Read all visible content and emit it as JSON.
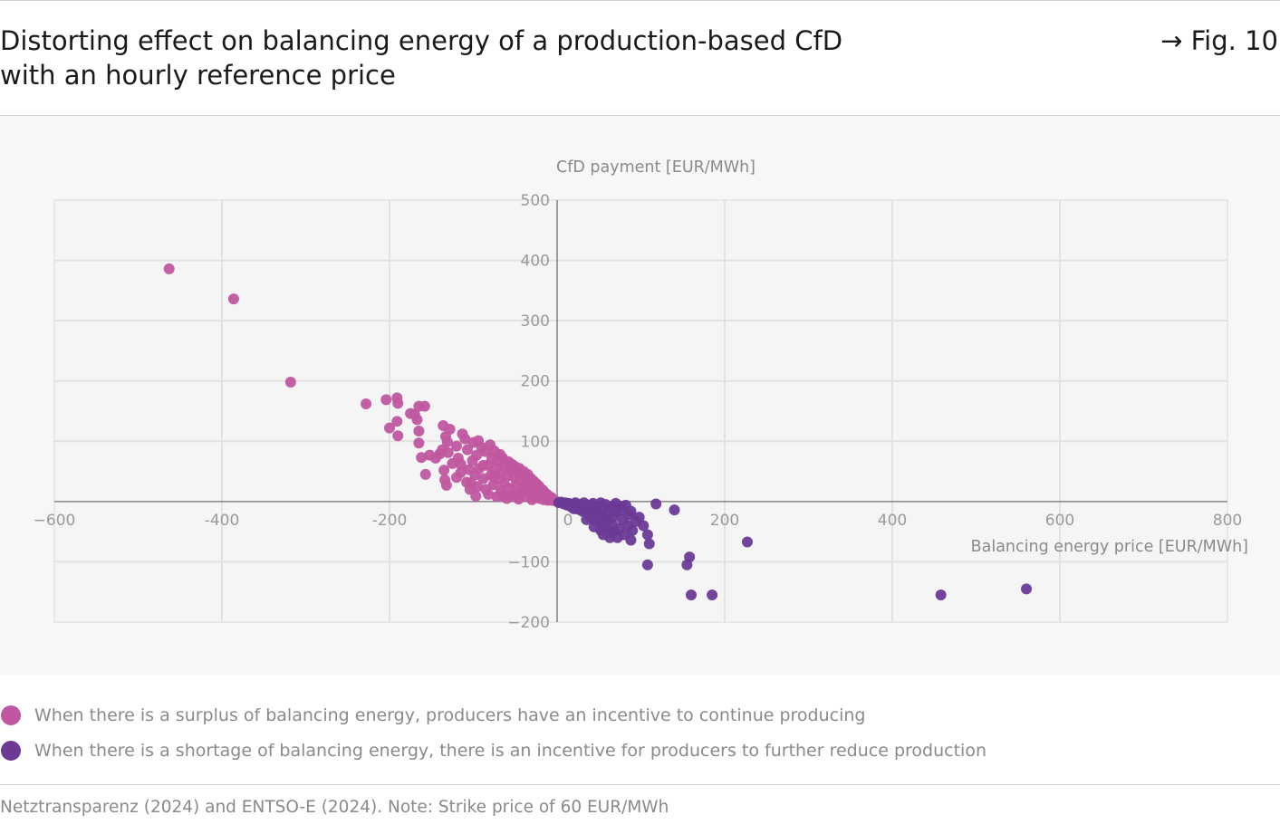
{
  "header": {
    "title_line1": "Distorting effect on balancing energy of a production-based CfD",
    "title_line2": "with an hourly reference price",
    "figure_ref": "→ Fig. 10"
  },
  "chart_data": {
    "type": "scatter",
    "title": "",
    "xlabel": "Balancing energy price [EUR/MWh]",
    "ylabel": "CfD payment [EUR/MWh]",
    "xlim": [
      -600,
      800
    ],
    "ylim": [
      -200,
      500
    ],
    "x_ticks": [
      -600,
      -400,
      -200,
      0,
      200,
      400,
      600,
      800
    ],
    "y_ticks": [
      -200,
      -100,
      100,
      200,
      300,
      400,
      500
    ],
    "x_tick_labels": [
      "−600",
      "-400",
      "-200",
      "0",
      "200",
      "400",
      "600",
      "800"
    ],
    "y_tick_labels": [
      "−200",
      "−100",
      "100",
      "200",
      "300",
      "400",
      "500"
    ],
    "grid": true,
    "series": [
      {
        "name": "When there is a surplus of balancing energy, producers have an incentive to continue producing",
        "color": "#c0569f",
        "points": [
          [
            -463,
            386
          ],
          [
            -386,
            336
          ],
          [
            -318,
            198
          ],
          [
            -228,
            162
          ],
          [
            -204,
            169
          ],
          [
            -191,
            172
          ],
          [
            -190,
            163
          ],
          [
            -175,
            146
          ],
          [
            -170,
            145
          ],
          [
            -167,
            136
          ],
          [
            -165,
            158
          ],
          [
            -158,
            158
          ],
          [
            -191,
            133
          ],
          [
            -200,
            122
          ],
          [
            -190,
            109
          ],
          [
            -165,
            117
          ],
          [
            -165,
            97
          ],
          [
            -152,
            77
          ],
          [
            -162,
            73
          ],
          [
            -157,
            45
          ],
          [
            -145,
            72
          ],
          [
            -140,
            79
          ],
          [
            -137,
            86
          ],
          [
            -136,
            126
          ],
          [
            -133,
            108
          ],
          [
            -131,
            99
          ],
          [
            -130,
            81
          ],
          [
            -125,
            63
          ],
          [
            -135,
            52
          ],
          [
            -134,
            36
          ],
          [
            -132,
            27
          ],
          [
            -128,
            120
          ],
          [
            -120,
            92
          ],
          [
            -118,
            72
          ],
          [
            -115,
            62
          ],
          [
            -113,
            112
          ],
          [
            -110,
            104
          ],
          [
            -107,
            86
          ],
          [
            -105,
            53
          ],
          [
            -104,
            20
          ],
          [
            -103,
            31
          ],
          [
            -101,
            68
          ],
          [
            -100,
            98
          ],
          [
            -98,
            44
          ],
          [
            -97,
            9
          ],
          [
            -96,
            77
          ],
          [
            -94,
            101
          ],
          [
            -93,
            55
          ],
          [
            -90,
            90
          ],
          [
            -88,
            38
          ],
          [
            -86,
            83
          ],
          [
            -85,
            20
          ],
          [
            -83,
            60
          ],
          [
            -82,
            12
          ],
          [
            -80,
            94
          ],
          [
            -79,
            44
          ],
          [
            -78,
            71
          ],
          [
            -76,
            28
          ],
          [
            -75,
            84
          ],
          [
            -73,
            55
          ],
          [
            -72,
            8
          ],
          [
            -71,
            67
          ],
          [
            -70,
            37
          ],
          [
            -68,
            78
          ],
          [
            -67,
            18
          ],
          [
            -66,
            50
          ],
          [
            -65,
            72
          ],
          [
            -63,
            30
          ],
          [
            -62,
            60
          ],
          [
            -60,
            5
          ],
          [
            -59,
            43
          ],
          [
            -58,
            66
          ],
          [
            -57,
            22
          ],
          [
            -55,
            52
          ],
          [
            -54,
            62
          ],
          [
            -53,
            12
          ],
          [
            -51,
            40
          ],
          [
            -50,
            58
          ],
          [
            -49,
            28
          ],
          [
            -47,
            49
          ],
          [
            -46,
            4
          ],
          [
            -45,
            55
          ],
          [
            -44,
            36
          ],
          [
            -42,
            18
          ],
          [
            -41,
            44
          ],
          [
            -40,
            50
          ],
          [
            -38,
            26
          ],
          [
            -37,
            8
          ],
          [
            -36,
            40
          ],
          [
            -35,
            45
          ],
          [
            -33,
            30
          ],
          [
            -32,
            15
          ],
          [
            -31,
            38
          ],
          [
            -30,
            3
          ],
          [
            -28,
            34
          ],
          [
            -27,
            22
          ],
          [
            -26,
            9
          ],
          [
            -25,
            30
          ],
          [
            -23,
            18
          ],
          [
            -22,
            26
          ],
          [
            -21,
            5
          ],
          [
            -20,
            22
          ],
          [
            -18,
            14
          ],
          [
            -17,
            19
          ],
          [
            -16,
            3
          ],
          [
            -15,
            15
          ],
          [
            -13,
            10
          ],
          [
            -12,
            12
          ],
          [
            -11,
            2
          ],
          [
            -10,
            9
          ],
          [
            -8,
            6
          ],
          [
            -7,
            7
          ],
          [
            -6,
            2
          ],
          [
            -5,
            4
          ],
          [
            -3,
            2
          ],
          [
            -2,
            1
          ],
          [
            -115,
            48
          ],
          [
            -108,
            32
          ],
          [
            -95,
            25
          ],
          [
            -88,
            60
          ],
          [
            -75,
            42
          ],
          [
            -120,
            40
          ],
          [
            -52,
            8
          ],
          [
            -44,
            12
          ],
          [
            -65,
            10
          ]
        ]
      },
      {
        "name": "When there is a shortage of balancing energy, there is an incentive for producers to further reduce production",
        "color": "#6c3a96",
        "points": [
          [
            2,
            -2
          ],
          [
            5,
            -1
          ],
          [
            8,
            -4
          ],
          [
            10,
            -2
          ],
          [
            12,
            -6
          ],
          [
            14,
            -3
          ],
          [
            17,
            -9
          ],
          [
            19,
            -4
          ],
          [
            22,
            -2
          ],
          [
            24,
            -8
          ],
          [
            26,
            -13
          ],
          [
            28,
            -5
          ],
          [
            30,
            -16
          ],
          [
            32,
            -2
          ],
          [
            34,
            -10
          ],
          [
            36,
            -20
          ],
          [
            38,
            -6
          ],
          [
            40,
            -25
          ],
          [
            42,
            -12
          ],
          [
            43,
            -3
          ],
          [
            45,
            -30
          ],
          [
            46,
            -18
          ],
          [
            48,
            -8
          ],
          [
            50,
            -35
          ],
          [
            51,
            -22
          ],
          [
            52,
            -2
          ],
          [
            54,
            -40
          ],
          [
            55,
            -14
          ],
          [
            57,
            -28
          ],
          [
            58,
            -5
          ],
          [
            60,
            -46
          ],
          [
            61,
            -32
          ],
          [
            62,
            -18
          ],
          [
            64,
            -52
          ],
          [
            65,
            -8
          ],
          [
            66,
            -38
          ],
          [
            68,
            -24
          ],
          [
            70,
            -3
          ],
          [
            72,
            -60
          ],
          [
            74,
            -45
          ],
          [
            76,
            -15
          ],
          [
            78,
            -30
          ],
          [
            80,
            -55
          ],
          [
            82,
            -6
          ],
          [
            85,
            -40
          ],
          [
            86,
            -22
          ],
          [
            88,
            -64
          ],
          [
            90,
            -48
          ],
          [
            94,
            -33
          ],
          [
            98,
            -26
          ],
          [
            103,
            -40
          ],
          [
            108,
            -55
          ],
          [
            118,
            -4
          ],
          [
            140,
            -14
          ],
          [
            110,
            -70
          ],
          [
            155,
            -105
          ],
          [
            108,
            -105
          ],
          [
            158,
            -92
          ],
          [
            227,
            -67
          ],
          [
            160,
            -155
          ],
          [
            185,
            -155
          ],
          [
            458,
            -155
          ],
          [
            560,
            -145
          ],
          [
            70,
            -18
          ],
          [
            55,
            -55
          ],
          [
            35,
            -30
          ],
          [
            44,
            -42
          ],
          [
            63,
            -60
          ],
          [
            77,
            -8
          ],
          [
            88,
            -16
          ],
          [
            68,
            -50
          ],
          [
            20,
            -12
          ],
          [
            15,
            -5
          ],
          [
            40,
            -6
          ],
          [
            52,
            -48
          ]
        ]
      }
    ]
  },
  "legend": {
    "items": [
      {
        "label": "When there is a surplus of balancing energy, producers have an incentive to continue producing",
        "color": "#c0569f"
      },
      {
        "label": "When there is a shortage of balancing energy, there is an incentive for producers to further reduce production",
        "color": "#6c3a96"
      }
    ]
  },
  "footer": {
    "source": "Netztransparenz (2024) and ENTSO-E (2024). Note: Strike price of 60 EUR/MWh"
  }
}
